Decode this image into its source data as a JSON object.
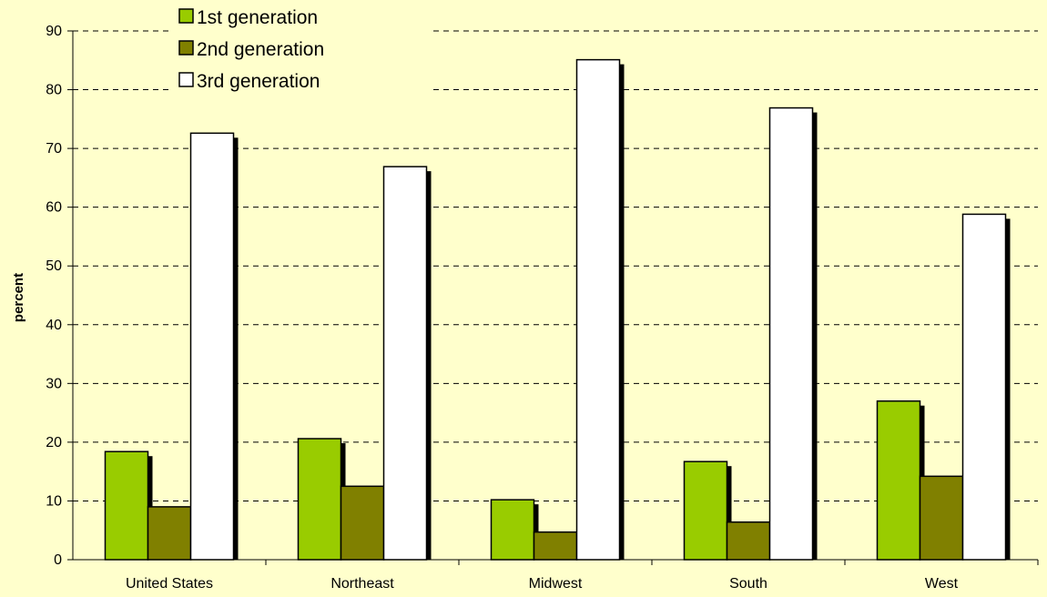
{
  "chart_data": {
    "type": "bar",
    "title": "",
    "xlabel": "",
    "ylabel": "percent",
    "ylim": [
      0,
      90
    ],
    "yticks": [
      0,
      10,
      20,
      30,
      40,
      50,
      60,
      70,
      80,
      90
    ],
    "grid": true,
    "legend_position": "top-left",
    "categories": [
      "United States",
      "Northeast",
      "Midwest",
      "South",
      "West"
    ],
    "series": [
      {
        "name": "1st generation",
        "values": [
          18.4,
          20.6,
          10.2,
          16.7,
          27.0
        ],
        "color": "#99CC00"
      },
      {
        "name": "2nd generation",
        "values": [
          9.0,
          12.5,
          4.7,
          6.4,
          14.2
        ],
        "color": "#808000"
      },
      {
        "name": "3rd generation",
        "values": [
          72.6,
          66.9,
          85.1,
          76.9,
          58.8
        ],
        "color": "#FFFFFF"
      }
    ]
  }
}
